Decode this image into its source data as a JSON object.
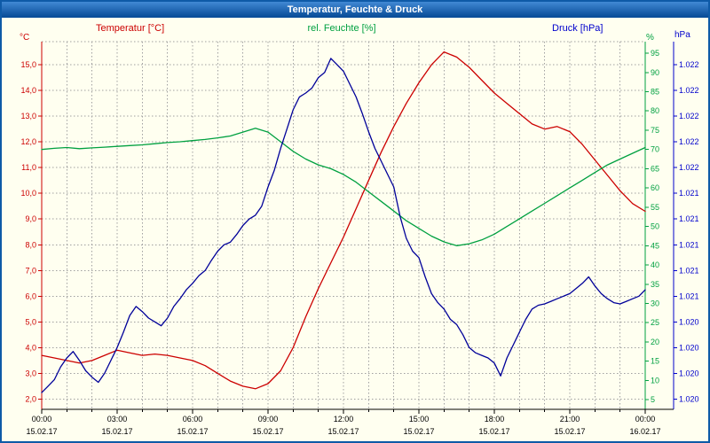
{
  "window": {
    "title": "Temperatur, Feuchte & Druck",
    "title_color": "#ffffff",
    "titlebar_colors": [
      "#4189d4",
      "#0b4f9b"
    ],
    "border_color": "#0e5aa7",
    "background": "#fffff0"
  },
  "legend": [
    {
      "label": "Temperatur [°C]",
      "color": "#cc0000"
    },
    {
      "label": "rel. Feuchte [%]",
      "color": "#00a040"
    },
    {
      "label": "Druck [hPa]",
      "color": "#0000cc"
    }
  ],
  "axes": {
    "temperature": {
      "unit": "°C",
      "color": "#cc0000",
      "min": 1.6,
      "max": 15.9,
      "ticks": [
        {
          "value": 15,
          "label": "15,0"
        },
        {
          "value": 14,
          "label": "14,0"
        },
        {
          "value": 13,
          "label": "13,0"
        },
        {
          "value": 12,
          "label": "12,0"
        },
        {
          "value": 11,
          "label": "11,0"
        },
        {
          "value": 10,
          "label": "10,0"
        },
        {
          "value": 9,
          "label": "9,0"
        },
        {
          "value": 8,
          "label": "8,0"
        },
        {
          "value": 7,
          "label": "7,0"
        },
        {
          "value": 6,
          "label": "6,0"
        },
        {
          "value": 5,
          "label": "5,0"
        },
        {
          "value": 4,
          "label": "4,0"
        },
        {
          "value": 3,
          "label": "3,0"
        },
        {
          "value": 2,
          "label": "2,0"
        }
      ]
    },
    "humidity": {
      "unit": "%",
      "color": "#00a040",
      "min": 2.5,
      "max": 98,
      "ticks": [
        {
          "value": 95,
          "label": "95"
        },
        {
          "value": 90,
          "label": "90"
        },
        {
          "value": 85,
          "label": "85"
        },
        {
          "value": 80,
          "label": "80"
        },
        {
          "value": 75,
          "label": "75"
        },
        {
          "value": 70,
          "label": "70"
        },
        {
          "value": 65,
          "label": "65"
        },
        {
          "value": 60,
          "label": "60"
        },
        {
          "value": 55,
          "label": "55"
        },
        {
          "value": 50,
          "label": "50"
        },
        {
          "value": 45,
          "label": "45"
        },
        {
          "value": 40,
          "label": "40"
        },
        {
          "value": 35,
          "label": "35"
        },
        {
          "value": 30,
          "label": "30"
        },
        {
          "value": 25,
          "label": "25"
        },
        {
          "value": 20,
          "label": "20"
        },
        {
          "value": 15,
          "label": "15"
        },
        {
          "value": 10,
          "label": "10"
        },
        {
          "value": 5,
          "label": "5"
        }
      ]
    },
    "pressure": {
      "unit": "hPa",
      "color": "#0000cc",
      "min": 1019.62,
      "max": 1022.48,
      "ticks": [
        {
          "value": 1022.3,
          "label": "1.022"
        },
        {
          "value": 1022.1,
          "label": "1.022"
        },
        {
          "value": 1021.9,
          "label": "1.022"
        },
        {
          "value": 1021.7,
          "label": "1.022"
        },
        {
          "value": 1021.5,
          "label": "1.022"
        },
        {
          "value": 1021.3,
          "label": "1.021"
        },
        {
          "value": 1021.1,
          "label": "1.021"
        },
        {
          "value": 1020.9,
          "label": "1.021"
        },
        {
          "value": 1020.7,
          "label": "1.021"
        },
        {
          "value": 1020.5,
          "label": "1.021"
        },
        {
          "value": 1020.3,
          "label": "1.020"
        },
        {
          "value": 1020.1,
          "label": "1.020"
        },
        {
          "value": 1019.9,
          "label": "1.020"
        },
        {
          "value": 1019.7,
          "label": "1.020"
        }
      ]
    }
  },
  "x_axis": {
    "min": 0,
    "max": 24,
    "minor_step": 1,
    "color": "#000000",
    "ticks": [
      {
        "hour": 0,
        "time": "00:00",
        "date": "15.02.17"
      },
      {
        "hour": 3,
        "time": "03:00",
        "date": "15.02.17"
      },
      {
        "hour": 6,
        "time": "06:00",
        "date": "15.02.17"
      },
      {
        "hour": 9,
        "time": "09:00",
        "date": "15.02.17"
      },
      {
        "hour": 12,
        "time": "12:00",
        "date": "15.02.17"
      },
      {
        "hour": 15,
        "time": "15:00",
        "date": "15.02.17"
      },
      {
        "hour": 18,
        "time": "18:00",
        "date": "15.02.17"
      },
      {
        "hour": 21,
        "time": "21:00",
        "date": "15.02.17"
      },
      {
        "hour": 24,
        "time": "00:00",
        "date": "16.02.17"
      }
    ]
  },
  "chart_data": {
    "type": "line",
    "title": "Temperatur, Feuchte & Druck",
    "grid_color": "#a0a0a0",
    "legend_position": "top",
    "x_unit": "hours",
    "series": [
      {
        "name": "temperatur",
        "axis": "temperature",
        "color": "#cc0000",
        "x_start": 0,
        "x_step": 0.5,
        "values": [
          3.7,
          3.6,
          3.5,
          3.4,
          3.5,
          3.7,
          3.9,
          3.8,
          3.7,
          3.75,
          3.7,
          3.6,
          3.5,
          3.3,
          3.0,
          2.7,
          2.5,
          2.4,
          2.6,
          3.1,
          4.0,
          5.2,
          6.3,
          7.3,
          8.3,
          9.4,
          10.5,
          11.6,
          12.6,
          13.5,
          14.3,
          15.0,
          15.5,
          15.3,
          14.9,
          14.4,
          13.9,
          13.5,
          13.1,
          12.7,
          12.5,
          12.6,
          12.4,
          11.9,
          11.3,
          10.7,
          10.1,
          9.6,
          9.3
        ]
      },
      {
        "name": "feuchte",
        "axis": "humidity",
        "color": "#00a040",
        "x_start": 0,
        "x_step": 0.5,
        "values": [
          70,
          70.3,
          70.5,
          70.2,
          70.4,
          70.6,
          70.8,
          71,
          71.2,
          71.5,
          71.8,
          72,
          72.3,
          72.6,
          73,
          73.5,
          74.5,
          75.5,
          74.5,
          72,
          69.5,
          67.5,
          66,
          65,
          63.5,
          61.5,
          59,
          56.5,
          54,
          51.5,
          49.5,
          47.5,
          46,
          45,
          45.5,
          46.5,
          48,
          50,
          52,
          54,
          56,
          58,
          60,
          62,
          64,
          66,
          67.5,
          69,
          70.5
        ]
      },
      {
        "name": "druck",
        "axis": "pressure",
        "color": "#000099",
        "x_start": 0,
        "x_step": 0.25,
        "values": [
          1019.75,
          1019.8,
          1019.85,
          1019.95,
          1020.02,
          1020.07,
          1020.0,
          1019.92,
          1019.87,
          1019.83,
          1019.9,
          1020.0,
          1020.1,
          1020.22,
          1020.35,
          1020.42,
          1020.38,
          1020.33,
          1020.3,
          1020.27,
          1020.33,
          1020.42,
          1020.48,
          1020.55,
          1020.6,
          1020.66,
          1020.7,
          1020.78,
          1020.85,
          1020.9,
          1020.92,
          1020.98,
          1021.05,
          1021.1,
          1021.13,
          1021.2,
          1021.35,
          1021.48,
          1021.65,
          1021.8,
          1021.95,
          1022.05,
          1022.08,
          1022.12,
          1022.2,
          1022.24,
          1022.35,
          1022.3,
          1022.25,
          1022.15,
          1022.05,
          1021.92,
          1021.78,
          1021.65,
          1021.55,
          1021.45,
          1021.35,
          1021.12,
          1020.95,
          1020.85,
          1020.8,
          1020.65,
          1020.52,
          1020.45,
          1020.4,
          1020.32,
          1020.28,
          1020.2,
          1020.1,
          1020.06,
          1020.04,
          1020.02,
          1019.98,
          1019.88,
          1020.02,
          1020.12,
          1020.22,
          1020.32,
          1020.4,
          1020.43,
          1020.44,
          1020.46,
          1020.48,
          1020.5,
          1020.52,
          1020.56,
          1020.6,
          1020.65,
          1020.58,
          1020.52,
          1020.48,
          1020.45,
          1020.44,
          1020.46,
          1020.48,
          1020.5,
          1020.55
        ]
      }
    ]
  }
}
